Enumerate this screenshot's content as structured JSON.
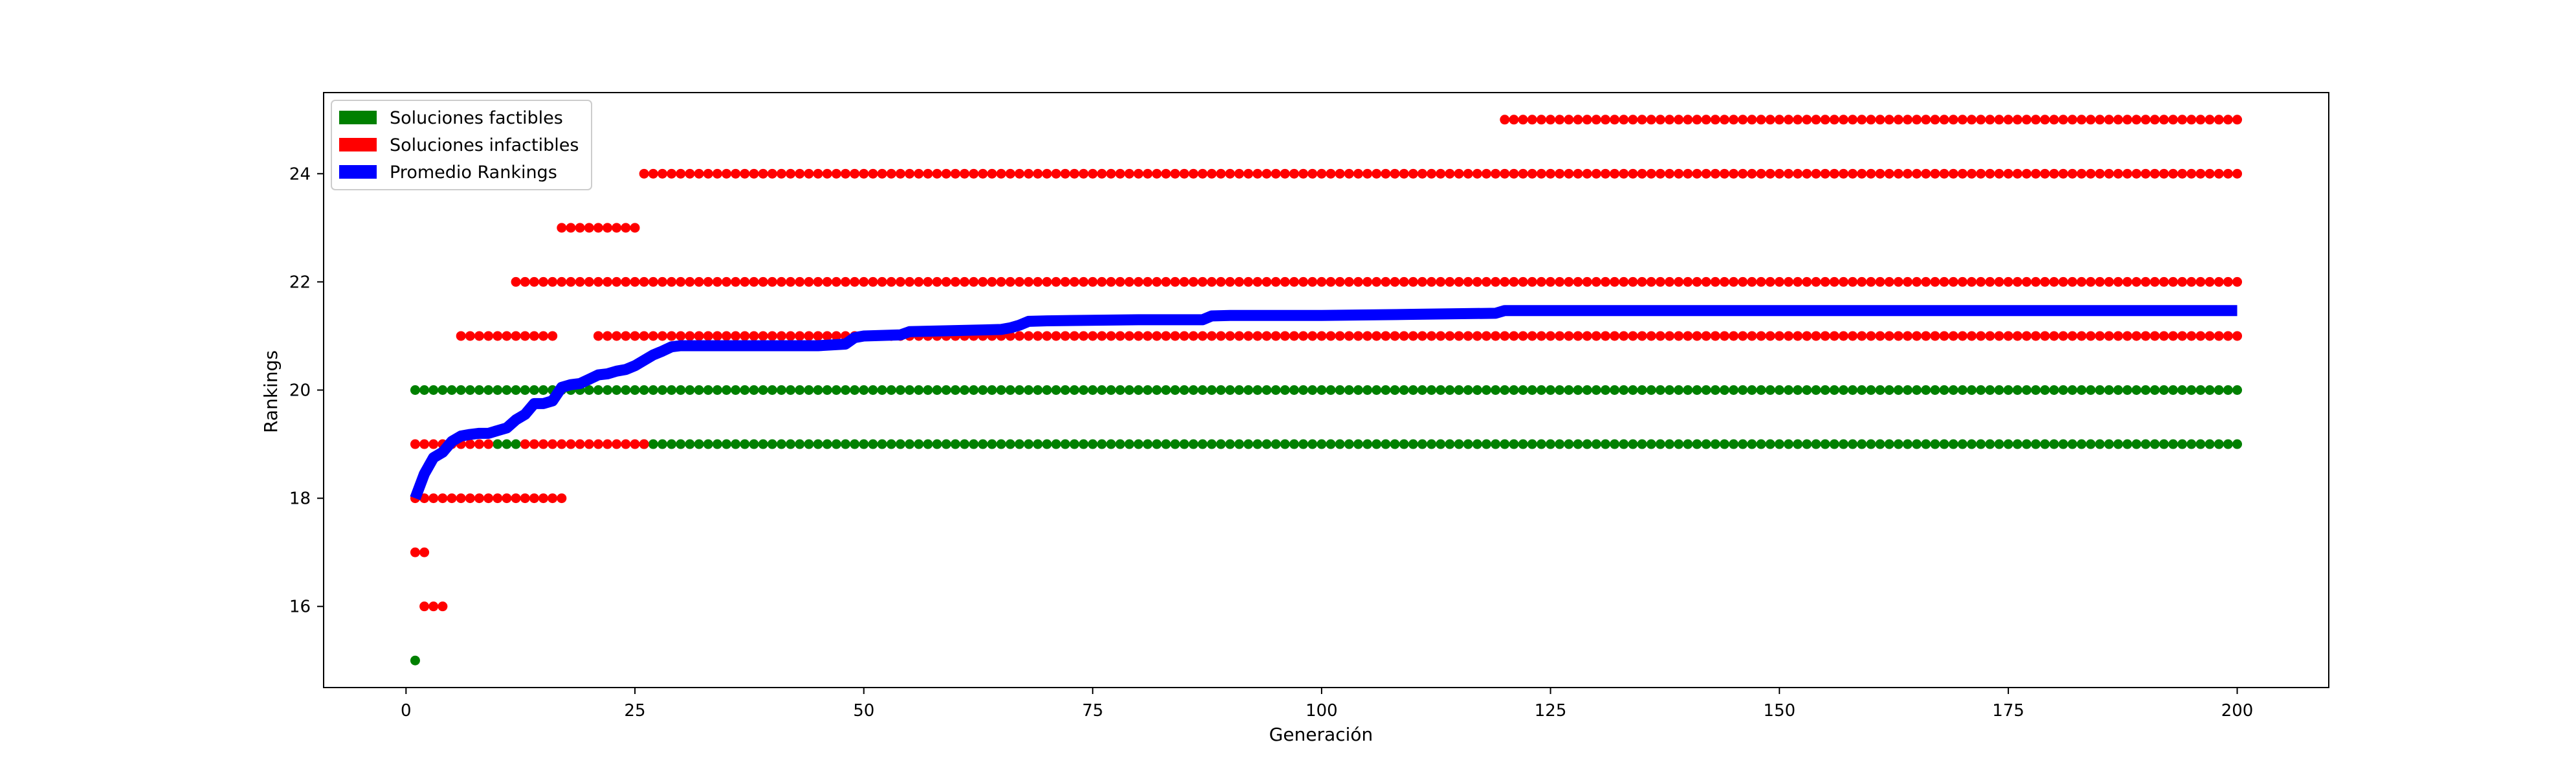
{
  "chart_data": {
    "type": "scatter",
    "title": "",
    "xlabel": "Generación",
    "ylabel": "Rankings",
    "xlim": [
      -9,
      210
    ],
    "ylim": [
      14.5,
      25.5
    ],
    "xticks": [
      0,
      25,
      50,
      75,
      100,
      125,
      150,
      175,
      200
    ],
    "yticks": [
      16,
      18,
      20,
      22,
      24
    ],
    "grid": false,
    "legend_position": "top-left",
    "legend": [
      {
        "label": "Soluciones factibles",
        "color": "#008000"
      },
      {
        "label": "Soluciones infactibles",
        "color": "#ff0000"
      },
      {
        "label": "Promedio Rankings",
        "color": "#0000ff"
      }
    ],
    "series": [
      {
        "name": "Soluciones factibles",
        "kind": "points",
        "color": "#008000",
        "segments": [
          {
            "y": 15,
            "from": 1,
            "to": 1
          },
          {
            "y": 20,
            "from": 1,
            "to": 200
          },
          {
            "y": 19,
            "from": 10,
            "to": 12
          },
          {
            "y": 19,
            "from": 26,
            "to": 200
          }
        ]
      },
      {
        "name": "Soluciones infactibles",
        "kind": "points",
        "color": "#ff0000",
        "segments": [
          {
            "y": 16,
            "from": 2,
            "to": 4
          },
          {
            "y": 17,
            "from": 1,
            "to": 2
          },
          {
            "y": 18,
            "from": 1,
            "to": 17
          },
          {
            "y": 19,
            "from": 1,
            "to": 9
          },
          {
            "y": 19,
            "from": 13,
            "to": 26
          },
          {
            "y": 21,
            "from": 6,
            "to": 16
          },
          {
            "y": 21,
            "from": 21,
            "to": 200
          },
          {
            "y": 22,
            "from": 12,
            "to": 200
          },
          {
            "y": 23,
            "from": 17,
            "to": 25
          },
          {
            "y": 24,
            "from": 26,
            "to": 200
          },
          {
            "y": 25,
            "from": 120,
            "to": 200
          }
        ]
      },
      {
        "name": "Promedio Rankings",
        "kind": "line",
        "color": "#0000ff",
        "x": [
          1,
          2,
          3,
          4,
          5,
          6,
          7,
          8,
          9,
          10,
          11,
          12,
          13,
          14,
          15,
          16,
          17,
          18,
          19,
          20,
          21,
          22,
          23,
          24,
          25,
          26,
          27,
          28,
          29,
          30,
          31,
          35,
          40,
          45,
          48,
          49,
          50,
          54,
          55,
          60,
          65,
          66,
          67,
          68,
          70,
          80,
          87,
          88,
          90,
          100,
          110,
          119,
          120,
          150,
          200
        ],
        "y": [
          18.0,
          18.45,
          18.75,
          18.85,
          19.05,
          19.15,
          19.18,
          19.2,
          19.2,
          19.25,
          19.3,
          19.45,
          19.55,
          19.75,
          19.75,
          19.8,
          20.05,
          20.1,
          20.12,
          20.2,
          20.28,
          20.3,
          20.35,
          20.38,
          20.45,
          20.55,
          20.65,
          20.72,
          20.8,
          20.82,
          20.82,
          20.82,
          20.82,
          20.82,
          20.85,
          20.97,
          21.0,
          21.02,
          21.08,
          21.1,
          21.12,
          21.15,
          21.2,
          21.27,
          21.28,
          21.3,
          21.3,
          21.37,
          21.38,
          21.38,
          21.4,
          21.42,
          21.47,
          21.47,
          21.47
        ]
      }
    ]
  }
}
